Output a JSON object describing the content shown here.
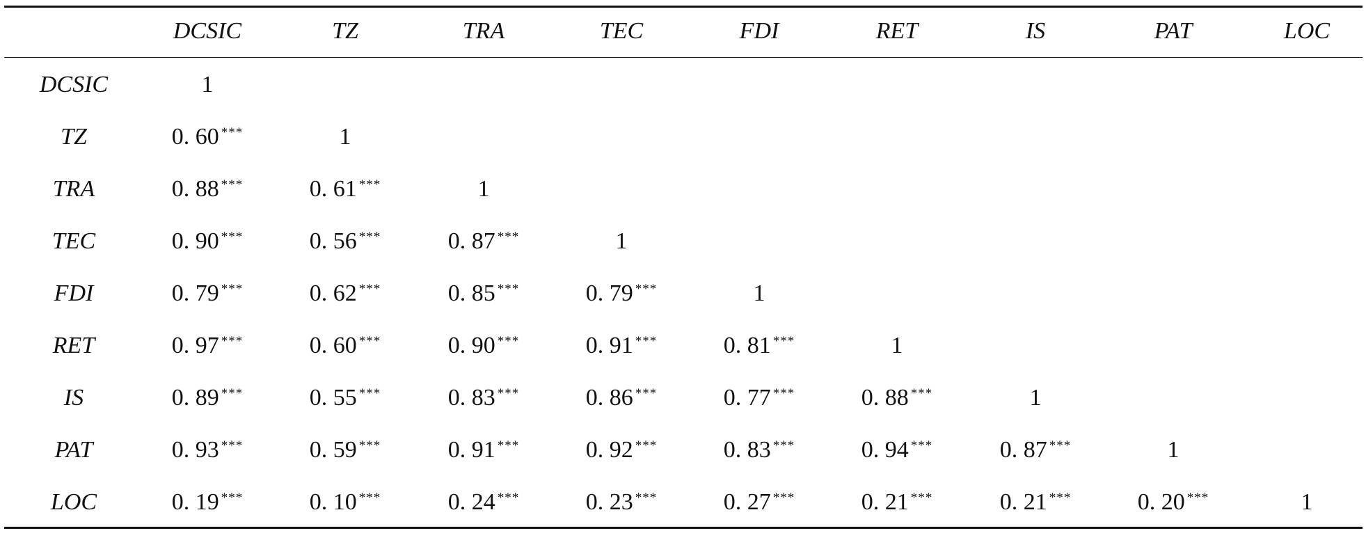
{
  "table": {
    "columns": [
      "DCSIC",
      "TZ",
      "TRA",
      "TEC",
      "FDI",
      "RET",
      "IS",
      "PAT",
      "LOC"
    ],
    "rows": [
      {
        "label": "DCSIC",
        "cells": [
          {
            "v": "1",
            "s": ""
          }
        ]
      },
      {
        "label": "TZ",
        "cells": [
          {
            "v": "0. 60",
            "s": "***"
          },
          {
            "v": "1",
            "s": ""
          }
        ]
      },
      {
        "label": "TRA",
        "cells": [
          {
            "v": "0. 88",
            "s": "***"
          },
          {
            "v": "0. 61",
            "s": "***"
          },
          {
            "v": "1",
            "s": ""
          }
        ]
      },
      {
        "label": "TEC",
        "cells": [
          {
            "v": "0. 90",
            "s": "***"
          },
          {
            "v": "0. 56",
            "s": "***"
          },
          {
            "v": "0. 87",
            "s": "***"
          },
          {
            "v": "1",
            "s": ""
          }
        ]
      },
      {
        "label": "FDI",
        "cells": [
          {
            "v": "0. 79",
            "s": "***"
          },
          {
            "v": "0. 62",
            "s": "***"
          },
          {
            "v": "0. 85",
            "s": "***"
          },
          {
            "v": "0. 79",
            "s": "***"
          },
          {
            "v": "1",
            "s": ""
          }
        ]
      },
      {
        "label": "RET",
        "cells": [
          {
            "v": "0. 97",
            "s": "***"
          },
          {
            "v": "0. 60",
            "s": "***"
          },
          {
            "v": "0. 90",
            "s": "***"
          },
          {
            "v": "0. 91",
            "s": "***"
          },
          {
            "v": "0. 81",
            "s": "***"
          },
          {
            "v": "1",
            "s": ""
          }
        ]
      },
      {
        "label": "IS",
        "cells": [
          {
            "v": "0. 89",
            "s": "***"
          },
          {
            "v": "0. 55",
            "s": "***"
          },
          {
            "v": "0. 83",
            "s": "***"
          },
          {
            "v": "0. 86",
            "s": "***"
          },
          {
            "v": "0. 77",
            "s": "***"
          },
          {
            "v": "0. 88",
            "s": "***"
          },
          {
            "v": "1",
            "s": ""
          }
        ]
      },
      {
        "label": "PAT",
        "cells": [
          {
            "v": "0. 93",
            "s": "***"
          },
          {
            "v": "0. 59",
            "s": "***"
          },
          {
            "v": "0. 91",
            "s": "***"
          },
          {
            "v": "0. 92",
            "s": "***"
          },
          {
            "v": "0. 83",
            "s": "***"
          },
          {
            "v": "0. 94",
            "s": "***"
          },
          {
            "v": "0. 87",
            "s": "***"
          },
          {
            "v": "1",
            "s": ""
          }
        ]
      },
      {
        "label": "LOC",
        "cells": [
          {
            "v": "0. 19",
            "s": "***"
          },
          {
            "v": "0. 10",
            "s": "***"
          },
          {
            "v": "0. 24",
            "s": "***"
          },
          {
            "v": "0. 23",
            "s": "***"
          },
          {
            "v": "0. 27",
            "s": "***"
          },
          {
            "v": "0. 21",
            "s": "***"
          },
          {
            "v": "0. 21",
            "s": "***"
          },
          {
            "v": "0. 20",
            "s": "***"
          },
          {
            "v": "1",
            "s": ""
          }
        ]
      }
    ]
  }
}
